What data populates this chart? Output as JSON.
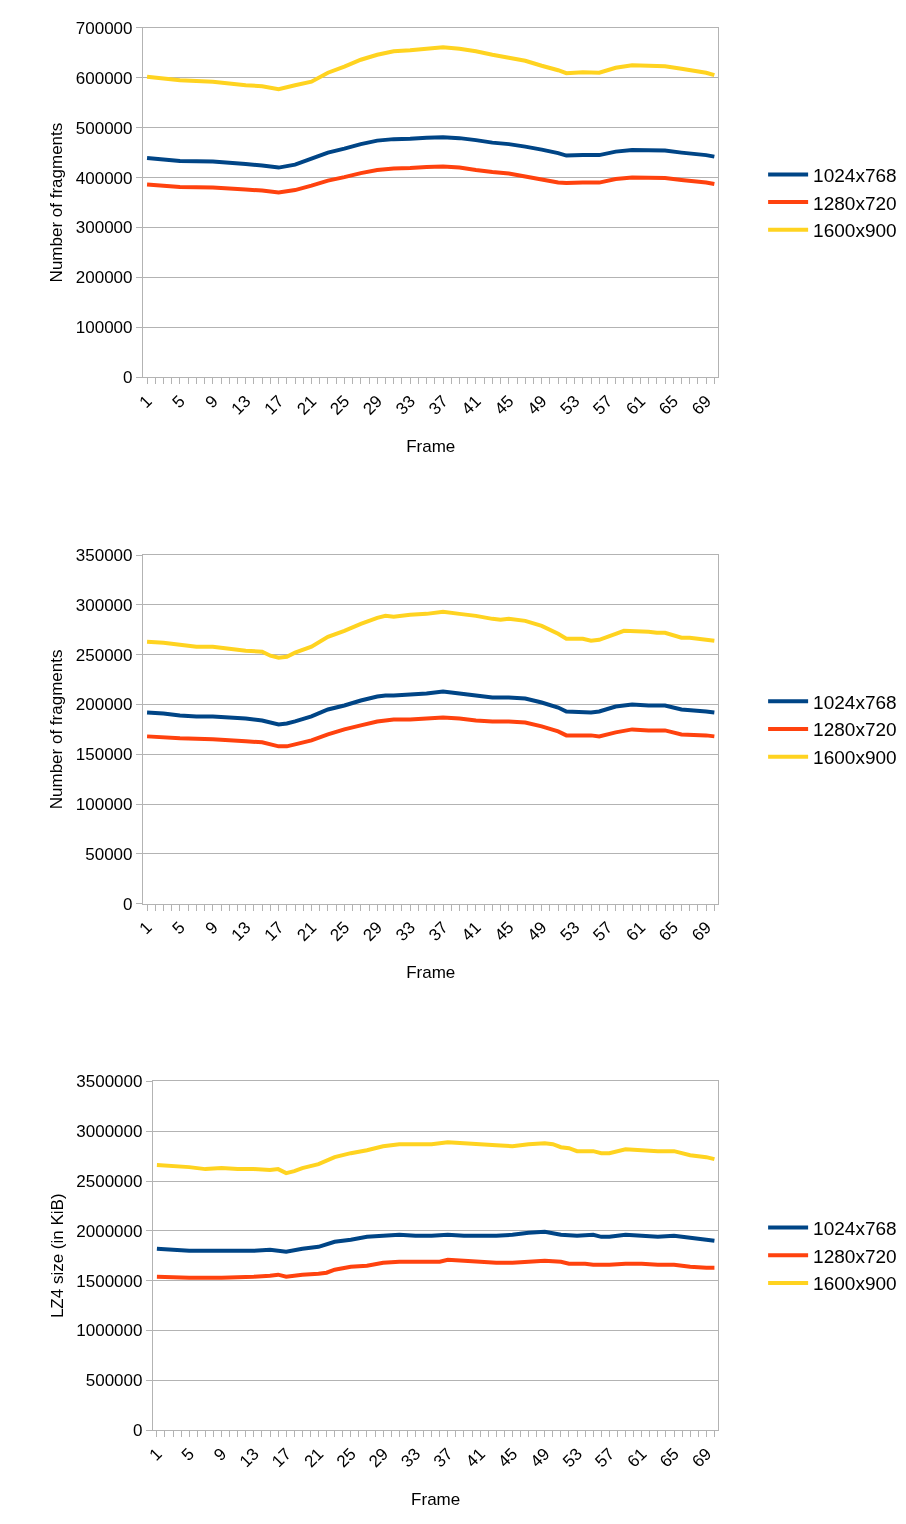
{
  "chart_data": [
    {
      "type": "line",
      "xlabel": "Frame",
      "ylabel": "Number of fragments",
      "xlim": [
        0.5,
        70.5
      ],
      "ylim": [
        0,
        700000
      ],
      "yticks": [
        0,
        100000,
        200000,
        300000,
        400000,
        500000,
        600000,
        700000
      ],
      "xticks": [
        1,
        {
          "value": 2,
          "label": null
        },
        {
          "value": 3,
          "label": null
        },
        {
          "value": 4,
          "label": null
        },
        5,
        {
          "value": 6,
          "label": null
        },
        {
          "value": 7,
          "label": null
        },
        {
          "value": 8,
          "label": null
        },
        9,
        {
          "value": 10,
          "label": null
        },
        {
          "value": 11,
          "label": null
        },
        {
          "value": 12,
          "label": null
        },
        13,
        {
          "value": 14,
          "label": null
        },
        {
          "value": 15,
          "label": null
        },
        {
          "value": 16,
          "label": null
        },
        17,
        {
          "value": 18,
          "label": null
        },
        {
          "value": 19,
          "label": null
        },
        {
          "value": 20,
          "label": null
        },
        21,
        {
          "value": 22,
          "label": null
        },
        {
          "value": 23,
          "label": null
        },
        {
          "value": 24,
          "label": null
        },
        25,
        {
          "value": 26,
          "label": null
        },
        {
          "value": 27,
          "label": null
        },
        {
          "value": 28,
          "label": null
        },
        29,
        {
          "value": 30,
          "label": null
        },
        {
          "value": 31,
          "label": null
        },
        {
          "value": 32,
          "label": null
        },
        33,
        {
          "value": 34,
          "label": null
        },
        {
          "value": 35,
          "label": null
        },
        {
          "value": 36,
          "label": null
        },
        37,
        {
          "value": 38,
          "label": null
        },
        {
          "value": 39,
          "label": null
        },
        {
          "value": 40,
          "label": null
        },
        41,
        {
          "value": 42,
          "label": null
        },
        {
          "value": 43,
          "label": null
        },
        {
          "value": 44,
          "label": null
        },
        45,
        {
          "value": 46,
          "label": null
        },
        {
          "value": 47,
          "label": null
        },
        {
          "value": 48,
          "label": null
        },
        49,
        {
          "value": 50,
          "label": null
        },
        {
          "value": 51,
          "label": null
        },
        {
          "value": 52,
          "label": null
        },
        53,
        {
          "value": 54,
          "label": null
        },
        {
          "value": 55,
          "label": null
        },
        {
          "value": 56,
          "label": null
        },
        57,
        {
          "value": 58,
          "label": null
        },
        {
          "value": 59,
          "label": null
        },
        {
          "value": 60,
          "label": null
        },
        61,
        {
          "value": 62,
          "label": null
        },
        {
          "value": 63,
          "label": null
        },
        {
          "value": 64,
          "label": null
        },
        65,
        {
          "value": 66,
          "label": null
        },
        {
          "value": 67,
          "label": null
        },
        {
          "value": 68,
          "label": null
        },
        69,
        {
          "value": 70,
          "label": null
        }
      ],
      "grid": "y",
      "legend": "right",
      "marker": "none",
      "line_style": "solid",
      "series": [
        {
          "name": "1024x768",
          "color": "#004586",
          "x": [
            1,
            5,
            9,
            13,
            15,
            17,
            19,
            21,
            23,
            25,
            27,
            29,
            31,
            33,
            35,
            37,
            39,
            41,
            43,
            45,
            47,
            49,
            51,
            52,
            54,
            56,
            58,
            60,
            64,
            66,
            69,
            70
          ],
          "values": [
            439000,
            433000,
            432000,
            427000,
            424000,
            420000,
            426000,
            438000,
            450000,
            458000,
            467000,
            474000,
            477000,
            478000,
            480000,
            481000,
            479000,
            475000,
            470000,
            467000,
            462000,
            456000,
            449000,
            444000,
            445000,
            445000,
            452000,
            455000,
            454000,
            450000,
            445000,
            442000
          ]
        },
        {
          "name": "1280x720",
          "color": "#ff420e",
          "x": [
            1,
            5,
            9,
            13,
            15,
            17,
            19,
            21,
            23,
            25,
            27,
            29,
            31,
            33,
            35,
            37,
            39,
            41,
            43,
            45,
            47,
            49,
            51,
            52,
            54,
            56,
            58,
            60,
            64,
            66,
            69,
            70
          ],
          "values": [
            386000,
            381000,
            380000,
            376000,
            374000,
            370000,
            375000,
            384000,
            394000,
            401000,
            409000,
            415000,
            418000,
            419000,
            421000,
            422000,
            420000,
            415000,
            411000,
            408000,
            402000,
            396000,
            390000,
            389000,
            390000,
            390000,
            397000,
            400000,
            399000,
            395000,
            390000,
            387000
          ]
        },
        {
          "name": "1600x900",
          "color": "#ffd320",
          "x": [
            1,
            5,
            9,
            13,
            15,
            17,
            19,
            21,
            23,
            25,
            27,
            29,
            31,
            33,
            35,
            37,
            39,
            41,
            43,
            45,
            47,
            49,
            51,
            52,
            54,
            56,
            58,
            60,
            64,
            66,
            69,
            70
          ],
          "values": [
            602000,
            595000,
            592000,
            585000,
            583000,
            577000,
            585000,
            592000,
            610000,
            622000,
            636000,
            646000,
            653000,
            655000,
            658000,
            661000,
            658000,
            653000,
            646000,
            640000,
            634000,
            624000,
            615000,
            609000,
            611000,
            610000,
            620000,
            625000,
            623000,
            618000,
            610000,
            605000
          ]
        }
      ]
    },
    {
      "type": "line",
      "xlabel": "Frame",
      "ylabel": "Number of fragments",
      "xlim": [
        0.5,
        70.5
      ],
      "ylim": [
        0,
        350000
      ],
      "yticks": [
        0,
        50000,
        100000,
        150000,
        200000,
        250000,
        300000,
        350000
      ],
      "xticks": [
        1,
        {
          "value": 2,
          "label": null
        },
        {
          "value": 3,
          "label": null
        },
        {
          "value": 4,
          "label": null
        },
        5,
        {
          "value": 6,
          "label": null
        },
        {
          "value": 7,
          "label": null
        },
        {
          "value": 8,
          "label": null
        },
        9,
        {
          "value": 10,
          "label": null
        },
        {
          "value": 11,
          "label": null
        },
        {
          "value": 12,
          "label": null
        },
        13,
        {
          "value": 14,
          "label": null
        },
        {
          "value": 15,
          "label": null
        },
        {
          "value": 16,
          "label": null
        },
        17,
        {
          "value": 18,
          "label": null
        },
        {
          "value": 19,
          "label": null
        },
        {
          "value": 20,
          "label": null
        },
        21,
        {
          "value": 22,
          "label": null
        },
        {
          "value": 23,
          "label": null
        },
        {
          "value": 24,
          "label": null
        },
        25,
        {
          "value": 26,
          "label": null
        },
        {
          "value": 27,
          "label": null
        },
        {
          "value": 28,
          "label": null
        },
        29,
        {
          "value": 30,
          "label": null
        },
        {
          "value": 31,
          "label": null
        },
        {
          "value": 32,
          "label": null
        },
        33,
        {
          "value": 34,
          "label": null
        },
        {
          "value": 35,
          "label": null
        },
        {
          "value": 36,
          "label": null
        },
        37,
        {
          "value": 38,
          "label": null
        },
        {
          "value": 39,
          "label": null
        },
        {
          "value": 40,
          "label": null
        },
        41,
        {
          "value": 42,
          "label": null
        },
        {
          "value": 43,
          "label": null
        },
        {
          "value": 44,
          "label": null
        },
        45,
        {
          "value": 46,
          "label": null
        },
        {
          "value": 47,
          "label": null
        },
        {
          "value": 48,
          "label": null
        },
        49,
        {
          "value": 50,
          "label": null
        },
        {
          "value": 51,
          "label": null
        },
        {
          "value": 52,
          "label": null
        },
        53,
        {
          "value": 54,
          "label": null
        },
        {
          "value": 55,
          "label": null
        },
        {
          "value": 56,
          "label": null
        },
        57,
        {
          "value": 58,
          "label": null
        },
        {
          "value": 59,
          "label": null
        },
        {
          "value": 60,
          "label": null
        },
        61,
        {
          "value": 62,
          "label": null
        },
        {
          "value": 63,
          "label": null
        },
        {
          "value": 64,
          "label": null
        },
        65,
        {
          "value": 66,
          "label": null
        },
        {
          "value": 67,
          "label": null
        },
        {
          "value": 68,
          "label": null
        },
        69,
        {
          "value": 70,
          "label": null
        }
      ],
      "grid": "y",
      "legend": "right",
      "marker": "none",
      "line_style": "solid",
      "series": [
        {
          "name": "1024x768",
          "color": "#004586",
          "x": [
            1,
            3,
            5,
            7,
            9,
            11,
            13,
            15,
            17,
            18,
            19,
            21,
            23,
            25,
            27,
            29,
            30,
            31,
            33,
            35,
            37,
            39,
            41,
            43,
            45,
            47,
            49,
            51,
            52,
            55,
            56,
            58,
            60,
            62,
            64,
            66,
            69,
            70
          ],
          "values": [
            192000,
            191000,
            189000,
            188000,
            188000,
            187000,
            186000,
            184000,
            180000,
            181000,
            183000,
            188000,
            195000,
            199000,
            204000,
            208000,
            209000,
            209000,
            210000,
            211000,
            213000,
            211000,
            209000,
            207000,
            207000,
            206000,
            202000,
            197000,
            193000,
            192000,
            193000,
            198000,
            200000,
            199000,
            199000,
            195000,
            193000,
            192000
          ]
        },
        {
          "name": "1280x720",
          "color": "#ff420e",
          "x": [
            1,
            5,
            9,
            13,
            15,
            17,
            18,
            19,
            21,
            23,
            25,
            27,
            29,
            31,
            33,
            35,
            37,
            39,
            41,
            43,
            45,
            47,
            49,
            51,
            52,
            55,
            56,
            58,
            60,
            62,
            64,
            66,
            69,
            70
          ],
          "values": [
            168000,
            166000,
            165000,
            163000,
            162000,
            158000,
            158000,
            160000,
            164000,
            170000,
            175000,
            179000,
            183000,
            185000,
            185000,
            186000,
            187000,
            186000,
            184000,
            183000,
            183000,
            182000,
            178000,
            173000,
            169000,
            169000,
            168000,
            172000,
            175000,
            174000,
            174000,
            170000,
            169000,
            168000
          ]
        },
        {
          "name": "1600x900",
          "color": "#ffd320",
          "x": [
            1,
            3,
            5,
            7,
            9,
            11,
            13,
            15,
            16,
            17,
            18,
            19,
            21,
            23,
            25,
            27,
            29,
            30,
            31,
            33,
            35,
            37,
            39,
            41,
            43,
            44,
            45,
            47,
            49,
            51,
            52,
            54,
            55,
            56,
            58,
            59,
            62,
            63,
            64,
            66,
            67,
            69,
            70
          ],
          "values": [
            263000,
            262000,
            260000,
            258000,
            258000,
            256000,
            254000,
            253000,
            249000,
            247000,
            248000,
            252000,
            258000,
            268000,
            274000,
            281000,
            287000,
            289000,
            288000,
            290000,
            291000,
            293000,
            291000,
            289000,
            286000,
            285000,
            286000,
            284000,
            279000,
            271000,
            266000,
            266000,
            264000,
            265000,
            271000,
            274000,
            273000,
            272000,
            272000,
            267000,
            267000,
            265000,
            264000
          ]
        }
      ]
    },
    {
      "type": "line",
      "xlabel": "Frame",
      "ylabel": "LZ4 size (in KiB)",
      "xlim": [
        0.5,
        70.5
      ],
      "ylim": [
        0,
        3500000
      ],
      "yticks": [
        0,
        500000,
        1000000,
        1500000,
        2000000,
        2500000,
        3000000,
        3500000
      ],
      "xticks": [
        1,
        {
          "value": 2,
          "label": null
        },
        {
          "value": 3,
          "label": null
        },
        {
          "value": 4,
          "label": null
        },
        5,
        {
          "value": 6,
          "label": null
        },
        {
          "value": 7,
          "label": null
        },
        {
          "value": 8,
          "label": null
        },
        9,
        {
          "value": 10,
          "label": null
        },
        {
          "value": 11,
          "label": null
        },
        {
          "value": 12,
          "label": null
        },
        13,
        {
          "value": 14,
          "label": null
        },
        {
          "value": 15,
          "label": null
        },
        {
          "value": 16,
          "label": null
        },
        17,
        {
          "value": 18,
          "label": null
        },
        {
          "value": 19,
          "label": null
        },
        {
          "value": 20,
          "label": null
        },
        21,
        {
          "value": 22,
          "label": null
        },
        {
          "value": 23,
          "label": null
        },
        {
          "value": 24,
          "label": null
        },
        25,
        {
          "value": 26,
          "label": null
        },
        {
          "value": 27,
          "label": null
        },
        {
          "value": 28,
          "label": null
        },
        29,
        {
          "value": 30,
          "label": null
        },
        {
          "value": 31,
          "label": null
        },
        {
          "value": 32,
          "label": null
        },
        33,
        {
          "value": 34,
          "label": null
        },
        {
          "value": 35,
          "label": null
        },
        {
          "value": 36,
          "label": null
        },
        37,
        {
          "value": 38,
          "label": null
        },
        {
          "value": 39,
          "label": null
        },
        {
          "value": 40,
          "label": null
        },
        41,
        {
          "value": 42,
          "label": null
        },
        {
          "value": 43,
          "label": null
        },
        {
          "value": 44,
          "label": null
        },
        45,
        {
          "value": 46,
          "label": null
        },
        {
          "value": 47,
          "label": null
        },
        {
          "value": 48,
          "label": null
        },
        49,
        {
          "value": 50,
          "label": null
        },
        {
          "value": 51,
          "label": null
        },
        {
          "value": 52,
          "label": null
        },
        53,
        {
          "value": 54,
          "label": null
        },
        {
          "value": 55,
          "label": null
        },
        {
          "value": 56,
          "label": null
        },
        57,
        {
          "value": 58,
          "label": null
        },
        {
          "value": 59,
          "label": null
        },
        {
          "value": 60,
          "label": null
        },
        61,
        {
          "value": 62,
          "label": null
        },
        {
          "value": 63,
          "label": null
        },
        {
          "value": 64,
          "label": null
        },
        65,
        {
          "value": 66,
          "label": null
        },
        {
          "value": 67,
          "label": null
        },
        {
          "value": 68,
          "label": null
        },
        69,
        {
          "value": 70,
          "label": null
        }
      ],
      "grid": "y",
      "legend": "right",
      "marker": "none",
      "line_style": "solid",
      "series": [
        {
          "name": "1024x768",
          "color": "#004586",
          "x": [
            1,
            5,
            9,
            13,
            15,
            17,
            19,
            21,
            23,
            25,
            27,
            29,
            31,
            33,
            35,
            37,
            39,
            41,
            43,
            45,
            47,
            49,
            51,
            53,
            55,
            56,
            57,
            59,
            61,
            63,
            65,
            67,
            69,
            70
          ],
          "values": [
            1820000,
            1800000,
            1800000,
            1800000,
            1810000,
            1790000,
            1820000,
            1840000,
            1890000,
            1910000,
            1940000,
            1950000,
            1960000,
            1950000,
            1950000,
            1960000,
            1950000,
            1950000,
            1950000,
            1960000,
            1980000,
            1990000,
            1960000,
            1950000,
            1960000,
            1940000,
            1940000,
            1960000,
            1950000,
            1940000,
            1950000,
            1930000,
            1910000,
            1900000
          ]
        },
        {
          "name": "1280x720",
          "color": "#ff420e",
          "x": [
            1,
            5,
            9,
            13,
            15,
            16,
            17,
            19,
            21,
            22,
            23,
            25,
            27,
            29,
            31,
            33,
            35,
            36,
            37,
            39,
            41,
            43,
            45,
            47,
            49,
            51,
            52,
            54,
            55,
            57,
            59,
            61,
            63,
            65,
            67,
            69,
            70
          ],
          "values": [
            1540000,
            1530000,
            1530000,
            1540000,
            1550000,
            1560000,
            1540000,
            1560000,
            1570000,
            1580000,
            1610000,
            1640000,
            1650000,
            1680000,
            1690000,
            1690000,
            1690000,
            1690000,
            1710000,
            1700000,
            1690000,
            1680000,
            1680000,
            1690000,
            1700000,
            1690000,
            1670000,
            1670000,
            1660000,
            1660000,
            1670000,
            1670000,
            1660000,
            1660000,
            1640000,
            1630000,
            1630000
          ]
        },
        {
          "name": "1600x900",
          "color": "#ffd320",
          "x": [
            1,
            5,
            7,
            9,
            11,
            13,
            15,
            16,
            17,
            18,
            19,
            21,
            23,
            25,
            27,
            29,
            31,
            33,
            35,
            37,
            39,
            41,
            43,
            45,
            47,
            49,
            50,
            51,
            52,
            53,
            55,
            56,
            57,
            59,
            61,
            63,
            65,
            67,
            69,
            70
          ],
          "values": [
            2660000,
            2640000,
            2620000,
            2630000,
            2620000,
            2620000,
            2610000,
            2620000,
            2580000,
            2600000,
            2630000,
            2670000,
            2740000,
            2780000,
            2810000,
            2850000,
            2870000,
            2870000,
            2870000,
            2890000,
            2880000,
            2870000,
            2860000,
            2850000,
            2870000,
            2880000,
            2870000,
            2840000,
            2830000,
            2800000,
            2800000,
            2780000,
            2780000,
            2820000,
            2810000,
            2800000,
            2800000,
            2760000,
            2740000,
            2720000
          ]
        }
      ]
    }
  ]
}
